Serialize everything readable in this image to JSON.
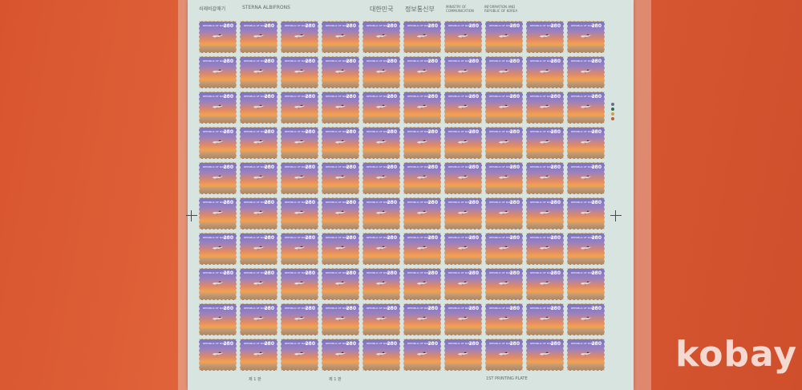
{
  "sheet": {
    "top_margin": [
      "쇠제비갈매기",
      "STERNA ALBIFRONS",
      "대한민국",
      "정보통신부",
      "MINISTRY OF",
      "COMMUNICATION",
      "INFORMATION AND",
      "REPUBLIC OF KOREA"
    ],
    "bottom_margin": [
      "제 1 판",
      "제 1 판",
      "1ST PRINTING PLATE"
    ],
    "stamp": {
      "country": "REPUBLIC OF KOREA",
      "value": "280",
      "rows": 10,
      "columns": 10
    },
    "color_dots": [
      "#6d6a8c",
      "#2f6b4c",
      "#d2a04a",
      "#c25b3c"
    ]
  },
  "watermark": "kobay"
}
